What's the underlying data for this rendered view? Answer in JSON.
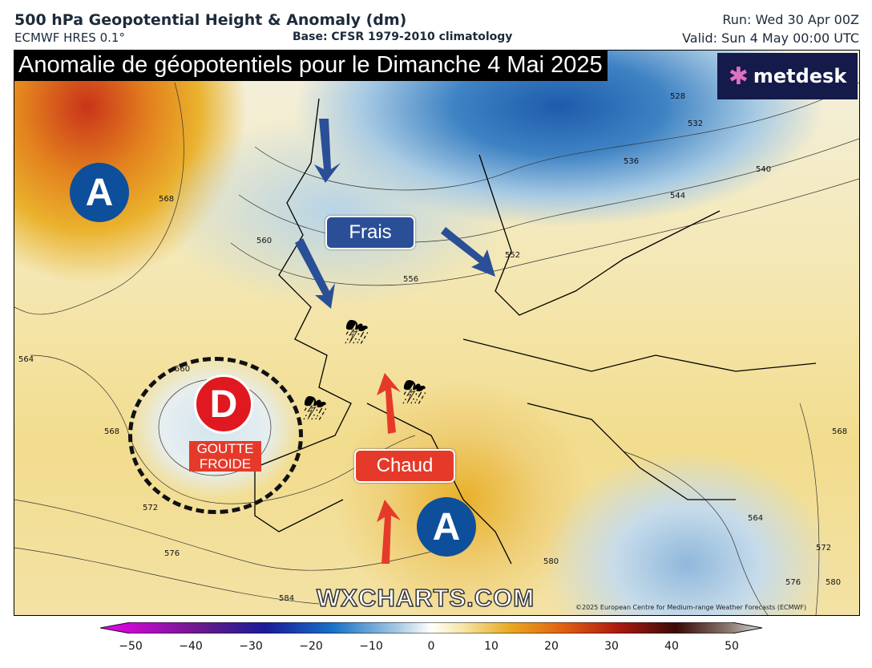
{
  "header": {
    "title": "500 hPa Geopotential Height & Anomaly (dm)",
    "model": "ECMWF HRES 0.1°",
    "base": "Base: CFSR 1979-2010 climatology",
    "run": "Run: Wed 30 Apr 00Z",
    "valid": "Valid: Sun 4 May 00:00 UTC"
  },
  "map": {
    "banner": "Anomalie de géopotentiels pour le Dimanche 4 Mai 2025",
    "logo": "metdesk",
    "high_atlantic": "A",
    "high_med": "A",
    "low": "D",
    "low_label": [
      "GOUTTE",
      "FROIDE"
    ],
    "label_cool": "Frais",
    "label_warm": "Chaud",
    "contour_labels": [
      "528",
      "532",
      "536",
      "540",
      "544",
      "552",
      "556",
      "560",
      "564",
      "568",
      "568",
      "572",
      "576",
      "580",
      "560",
      "564",
      "568",
      "572",
      "584",
      "576",
      "580"
    ],
    "watermark": "WXCHARTS.COM",
    "copyright": "©2025 European Centre for Medium-range Weather Forecasts (ECMWF)",
    "colors": {
      "high": "#0d4f9a",
      "low": "#e01820",
      "cool_arrow": "#2a4f96",
      "warm_arrow": "#e53a2a"
    },
    "icons": [
      "thunderstorm-sun-icon",
      "thunderstorm-sun-icon",
      "thunderstorm-sun-icon"
    ]
  },
  "colorbar": {
    "ticks": [
      "−50",
      "−40",
      "−30",
      "−20",
      "−10",
      "0",
      "10",
      "20",
      "30",
      "40",
      "50"
    ],
    "range": [
      -50,
      50
    ],
    "unit": "dm"
  }
}
